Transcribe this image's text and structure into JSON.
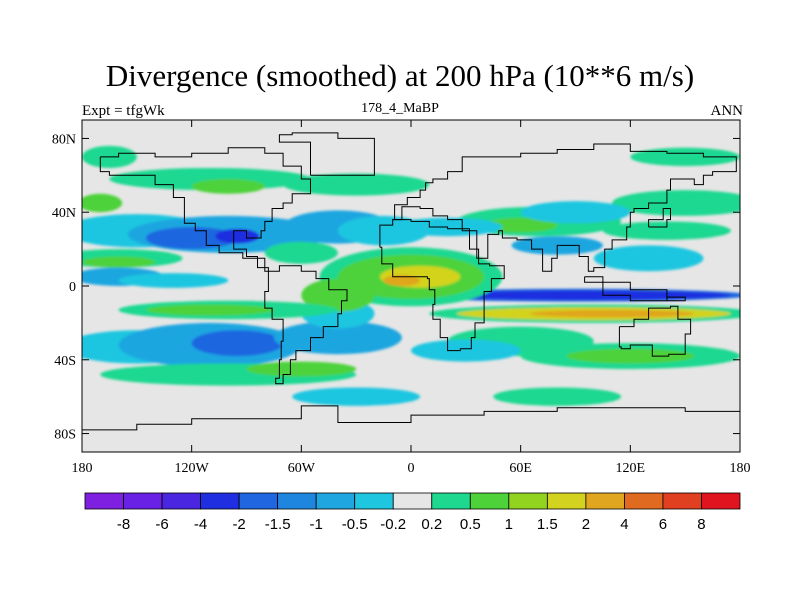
{
  "header": {
    "title": "Divergence (smoothed) at 200 hPa (10**6 m/s)",
    "left_label": "Expt = tfgWk",
    "center_label": "178_4_MaBP",
    "right_label": "ANN"
  },
  "map": {
    "projection": "cylindrical equidistant",
    "lon_range": [
      -180,
      180
    ],
    "lat_range": [
      -90,
      90
    ],
    "x_ticks": [
      {
        "lon": -180,
        "label": "180"
      },
      {
        "lon": -120,
        "label": "120W"
      },
      {
        "lon": -60,
        "label": "60W"
      },
      {
        "lon": 0,
        "label": "0"
      },
      {
        "lon": 60,
        "label": "60E"
      },
      {
        "lon": 120,
        "label": "120E"
      },
      {
        "lon": 180,
        "label": "180"
      }
    ],
    "y_ticks": [
      {
        "lat": 80,
        "label": "80N"
      },
      {
        "lat": 40,
        "label": "40N"
      },
      {
        "lat": 0,
        "label": "0"
      },
      {
        "lat": -40,
        "label": "40S"
      },
      {
        "lat": -80,
        "label": "80S"
      }
    ]
  },
  "colorbar": {
    "colors": [
      "#7f1fe0",
      "#6a21e6",
      "#4b26e0",
      "#1f2ee0",
      "#1f66e0",
      "#1f86e0",
      "#1fa6e0",
      "#1fc6e0",
      "#e6e6e6",
      "#1fd890",
      "#4ed23a",
      "#92d31f",
      "#d3d31f",
      "#e0a61f",
      "#e06a1f",
      "#e0401f",
      "#e0141f"
    ],
    "labels": [
      "-8",
      "-6",
      "-4",
      "-2",
      "-1.5",
      "-1",
      "-0.5",
      "-0.2",
      "0.2",
      "0.5",
      "1",
      "1.5",
      "2",
      "4",
      "6",
      "8"
    ]
  },
  "palette": {
    "neutral": "#e6e6e6",
    "neg_weak": "#1fc6e0",
    "neg_mid": "#1fa6e0",
    "neg_strong": "#1f66e0",
    "neg_vstrong": "#1f2ee0",
    "pos_weak": "#1fd890",
    "pos_mid": "#4ed23a",
    "pos_strong": "#d3d31f",
    "pos_vstrong": "#e0a61f"
  }
}
